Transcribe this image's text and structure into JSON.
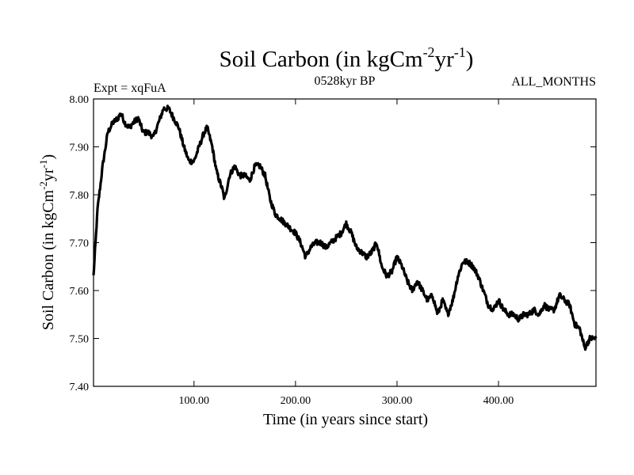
{
  "chart_data": {
    "type": "line",
    "title_main": "Soil Carbon (in kgCm",
    "title_sup1": "-2",
    "title_mid": "yr",
    "title_sup2": "-1",
    "title_end": ")",
    "subtitle_left": "Expt = xqFuA",
    "subtitle_center": "0528kyr BP",
    "subtitle_right": "ALL_MONTHS",
    "xlabel": "Time (in years since start)",
    "ylabel_main": "Soil Carbon (in kgCm",
    "ylabel_sup1": "-2",
    "ylabel_mid": "yr",
    "ylabel_sup2": "-1",
    "ylabel_end": ")",
    "xlim": [
      1,
      496
    ],
    "ylim": [
      7.4,
      8.0
    ],
    "x_ticks": [
      100,
      200,
      300,
      400
    ],
    "x_tick_labels": [
      "100.00",
      "200.00",
      "300.00",
      "400.00"
    ],
    "y_ticks": [
      7.4,
      7.5,
      7.6,
      7.7,
      7.8,
      7.9,
      8.0
    ],
    "y_tick_labels": [
      "7.40",
      "7.50",
      "7.60",
      "7.70",
      "7.80",
      "7.90",
      "8.00"
    ],
    "series": [
      {
        "name": "Soil Carbon",
        "x": [
          1,
          5,
          10,
          15,
          20,
          25,
          28,
          32,
          36,
          40,
          45,
          50,
          55,
          60,
          65,
          70,
          75,
          80,
          85,
          90,
          95,
          100,
          105,
          110,
          113,
          118,
          122,
          128,
          130,
          135,
          140,
          145,
          150,
          155,
          160,
          165,
          170,
          175,
          180,
          185,
          190,
          195,
          200,
          205,
          210,
          215,
          220,
          225,
          230,
          235,
          240,
          245,
          250,
          255,
          260,
          265,
          270,
          275,
          280,
          285,
          290,
          295,
          300,
          305,
          310,
          315,
          320,
          325,
          330,
          335,
          340,
          345,
          350,
          355,
          360,
          365,
          370,
          375,
          380,
          385,
          390,
          395,
          400,
          405,
          410,
          415,
          420,
          425,
          430,
          435,
          440,
          445,
          450,
          455,
          460,
          465,
          470,
          475,
          480,
          485,
          490,
          496
        ],
        "values": [
          7.63,
          7.77,
          7.86,
          7.93,
          7.95,
          7.96,
          7.97,
          7.95,
          7.94,
          7.95,
          7.96,
          7.93,
          7.93,
          7.92,
          7.95,
          7.98,
          7.98,
          7.96,
          7.94,
          7.9,
          7.87,
          7.87,
          7.9,
          7.93,
          7.94,
          7.9,
          7.85,
          7.81,
          7.79,
          7.84,
          7.86,
          7.84,
          7.84,
          7.83,
          7.86,
          7.86,
          7.84,
          7.79,
          7.76,
          7.75,
          7.74,
          7.73,
          7.72,
          7.7,
          7.67,
          7.69,
          7.7,
          7.7,
          7.69,
          7.7,
          7.71,
          7.72,
          7.74,
          7.72,
          7.69,
          7.68,
          7.67,
          7.68,
          7.7,
          7.65,
          7.63,
          7.64,
          7.67,
          7.65,
          7.62,
          7.6,
          7.62,
          7.6,
          7.58,
          7.59,
          7.55,
          7.58,
          7.55,
          7.58,
          7.63,
          7.66,
          7.66,
          7.65,
          7.63,
          7.6,
          7.57,
          7.56,
          7.58,
          7.56,
          7.55,
          7.55,
          7.54,
          7.55,
          7.55,
          7.56,
          7.55,
          7.57,
          7.56,
          7.56,
          7.59,
          7.58,
          7.57,
          7.53,
          7.52,
          7.48,
          7.5,
          7.5
        ]
      }
    ]
  }
}
